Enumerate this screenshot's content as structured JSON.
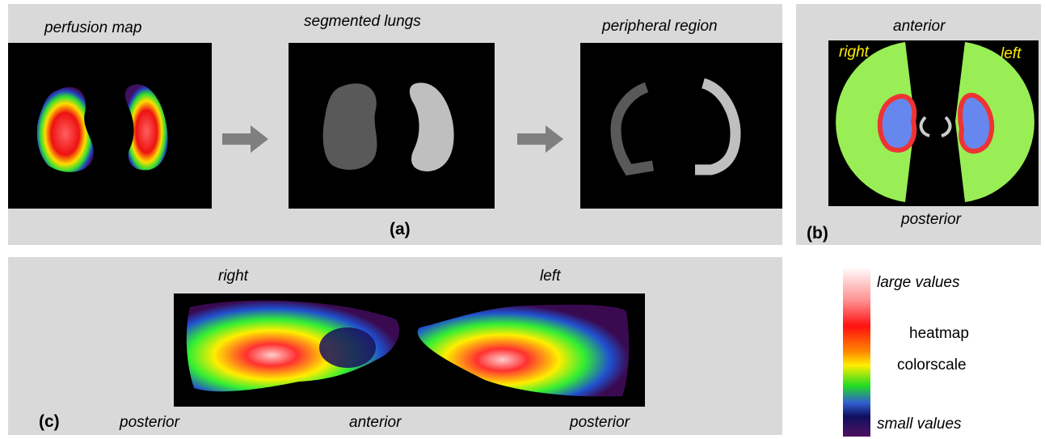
{
  "panel_a": {
    "steps": [
      "perfusion map",
      "segmented lungs",
      "peripheral region"
    ],
    "label": "(a)"
  },
  "panel_b": {
    "top": "anterior",
    "right_side": "right",
    "left_side": "left",
    "bottom": "posterior",
    "label": "(b)"
  },
  "panel_c": {
    "right_lung": "right",
    "left_lung": "left",
    "bottom_labels": [
      "posterior",
      "anterior",
      "posterior"
    ],
    "label": "(c)"
  },
  "colorscale": {
    "top": "large values",
    "middle": [
      "heatmap",
      "colorscale"
    ],
    "bottom": "small values"
  }
}
